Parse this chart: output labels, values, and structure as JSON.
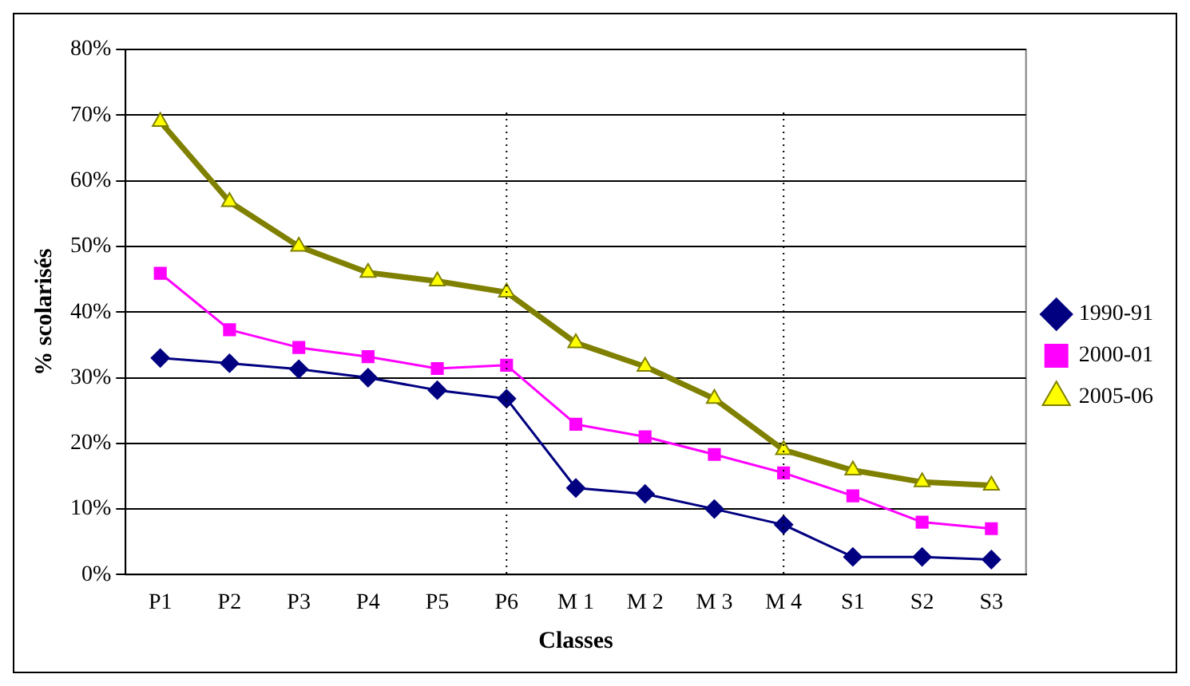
{
  "chart_data": {
    "type": "line",
    "xlabel": "Classes",
    "ylabel": "% scolarisés",
    "categories": [
      "P1",
      "P2",
      "P3",
      "P4",
      "P5",
      "P6",
      "M 1",
      "M 2",
      "M 3",
      "M 4",
      "S1",
      "S2",
      "S3"
    ],
    "series": [
      {
        "name": "1990-91",
        "color": "#000080",
        "marker": "diamond",
        "values": [
          33,
          32.2,
          31.3,
          30,
          28.1,
          26.8,
          13.2,
          12.3,
          10,
          7.6,
          2.7,
          2.7,
          2.3
        ]
      },
      {
        "name": "2000-01",
        "color": "#ff00ff",
        "marker": "square",
        "values": [
          45.9,
          37.3,
          34.6,
          33.2,
          31.4,
          31.9,
          22.9,
          21,
          18.3,
          15.5,
          12,
          8,
          7
        ]
      },
      {
        "name": "2005-06",
        "color": "#808000",
        "marker": "triangle",
        "values": [
          69,
          56.8,
          50,
          46,
          44.7,
          43,
          35.3,
          31.7,
          26.8,
          19,
          15.9,
          14.1,
          13.6
        ]
      }
    ],
    "ylim": [
      0,
      80
    ],
    "yticks": [
      {
        "value": 0,
        "label": "0%"
      },
      {
        "value": 10,
        "label": "10%"
      },
      {
        "value": 20,
        "label": "20%"
      },
      {
        "value": 30,
        "label": "30%"
      },
      {
        "value": 40,
        "label": "40%"
      },
      {
        "value": 50,
        "label": "50%"
      },
      {
        "value": 60,
        "label": "60%"
      },
      {
        "value": 70,
        "label": "70%"
      },
      {
        "value": 80,
        "label": "80%"
      }
    ],
    "ref_lines": [
      {
        "axis": "x",
        "value": "P6",
        "line_style": "dotted"
      },
      {
        "axis": "x",
        "value": "M 4",
        "line_style": "dotted"
      }
    ],
    "grid": "y",
    "legend": "right",
    "line_style": "solid"
  }
}
